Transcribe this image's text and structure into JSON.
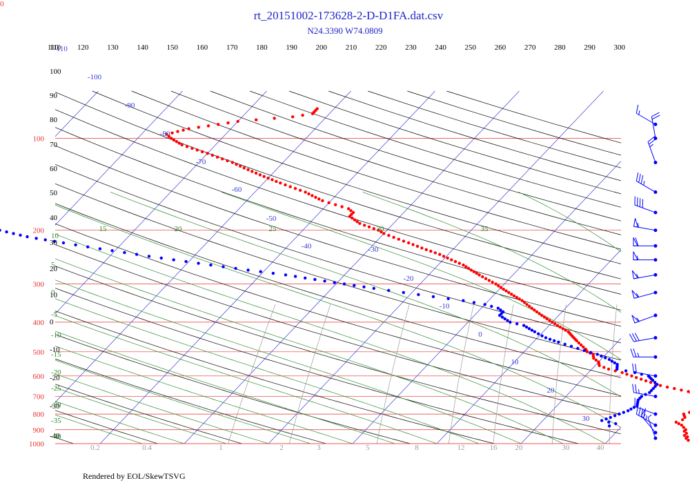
{
  "corner_label": "0",
  "footer": "Rendered by EOL/SkewTSVG",
  "chart_data": {
    "type": "skew-t",
    "title": "rt_20151002-173628-2-D-D1FA.dat.csv",
    "subtitle": "N24.3390 W74.0809",
    "grid": true,
    "colors": {
      "isobar": "#e83030",
      "isotherm": "#3b3bd6",
      "dry_adiabat": "#000000",
      "moist_adiabat": "#2e8b2e",
      "mixing_ratio": "#999999",
      "temperature": "#ff0000",
      "dewpoint": "#0000ff",
      "wind": "#0000ff"
    },
    "pressure_ticks": [
      "100",
      "200",
      "300",
      "400",
      "500",
      "600",
      "700",
      "800",
      "900",
      "1000"
    ],
    "top_ticks": [
      "110",
      "120",
      "130",
      "140",
      "150",
      "160",
      "170",
      "180",
      "190",
      "200",
      "210",
      "220",
      "230",
      "240",
      "250",
      "260",
      "270",
      "280",
      "290",
      "300"
    ],
    "left_black_ticks": [
      "110",
      "100",
      "90",
      "80",
      "70",
      "60",
      "50",
      "40",
      "30",
      "20",
      "10",
      "0",
      "-10",
      "-20",
      "-30",
      "-40"
    ],
    "isotherm_labels": [
      "-110",
      "-100",
      "-90",
      "-80",
      "-70",
      "-60",
      "-50",
      "-40",
      "-30",
      "-20",
      "-10",
      "0",
      "10",
      "20",
      "30"
    ],
    "moist_top_labels": [
      "15",
      "20",
      "25",
      "30",
      "35"
    ],
    "moist_left_labels": [
      "10",
      "5",
      "0",
      "-5",
      "-10",
      "-15",
      "-20",
      "-25",
      "-30",
      "-35",
      "-40"
    ],
    "mixing_ratio_labels": [
      "0.2",
      "0.4",
      "1",
      "2",
      "3",
      "5",
      "8",
      "12",
      "16",
      "20",
      "30",
      "40"
    ],
    "temperature_profile": [
      [
        1000,
        21
      ],
      [
        990,
        20.5
      ],
      [
        975,
        19.5
      ],
      [
        960,
        19
      ],
      [
        950,
        19
      ],
      [
        940,
        18.5
      ],
      [
        925,
        18.5
      ],
      [
        910,
        18
      ],
      [
        900,
        18
      ],
      [
        885,
        17.5
      ],
      [
        870,
        17
      ],
      [
        850,
        16
      ],
      [
        835,
        16.5
      ],
      [
        820,
        16.5
      ],
      [
        800,
        16
      ],
      [
        790,
        16.5
      ],
      [
        775,
        17
      ],
      [
        760,
        17
      ],
      [
        745,
        17.5
      ],
      [
        730,
        17
      ],
      [
        715,
        16
      ],
      [
        700,
        15.5
      ],
      [
        690,
        15
      ],
      [
        675,
        14
      ],
      [
        660,
        12
      ],
      [
        645,
        10
      ],
      [
        630,
        8.5
      ],
      [
        615,
        7
      ],
      [
        600,
        5.5
      ],
      [
        585,
        4
      ],
      [
        570,
        2
      ],
      [
        555,
        0.5
      ],
      [
        540,
        0
      ],
      [
        525,
        -1
      ],
      [
        510,
        -1.5
      ],
      [
        500,
        -2.5
      ],
      [
        490,
        -3
      ],
      [
        475,
        -4
      ],
      [
        460,
        -5
      ],
      [
        445,
        -6
      ],
      [
        430,
        -7
      ],
      [
        415,
        -8.5
      ],
      [
        400,
        -10
      ],
      [
        380,
        -12
      ],
      [
        360,
        -14
      ],
      [
        340,
        -16
      ],
      [
        320,
        -18.5
      ],
      [
        300,
        -21
      ],
      [
        280,
        -24
      ],
      [
        260,
        -27
      ],
      [
        240,
        -31
      ],
      [
        220,
        -36
      ],
      [
        205,
        -40
      ],
      [
        200,
        -41
      ],
      [
        190,
        -44
      ],
      [
        180,
        -46
      ],
      [
        175,
        -46
      ],
      [
        170,
        -47
      ],
      [
        165,
        -49
      ],
      [
        160,
        -51
      ],
      [
        150,
        -54
      ],
      [
        140,
        -58
      ],
      [
        130,
        -62
      ],
      [
        120,
        -66
      ],
      [
        112,
        -70
      ],
      [
        105,
        -74
      ],
      [
        100,
        -76
      ],
      [
        97,
        -77
      ],
      [
        95,
        -76
      ],
      [
        93,
        -75
      ],
      [
        91,
        -73
      ],
      [
        90,
        -72
      ],
      [
        88,
        -70
      ],
      [
        87,
        -68
      ],
      [
        86,
        -66
      ],
      [
        85,
        -64
      ],
      [
        84,
        -63
      ],
      [
        83,
        -62
      ],
      [
        80,
        -62
      ]
    ],
    "dewpoint_profile": [
      [
        875,
        8.5
      ],
      [
        860,
        9
      ],
      [
        850,
        8
      ],
      [
        840,
        7
      ],
      [
        810,
        8
      ],
      [
        780,
        9
      ],
      [
        750,
        9.5
      ],
      [
        720,
        9
      ],
      [
        700,
        9
      ],
      [
        680,
        9.5
      ],
      [
        660,
        9.5
      ],
      [
        640,
        9.5
      ],
      [
        620,
        8.5
      ],
      [
        600,
        7.5
      ],
      [
        585,
        5.5
      ],
      [
        570,
        3
      ],
      [
        550,
        2.5
      ],
      [
        530,
        1
      ],
      [
        510,
        -1
      ],
      [
        495,
        -3
      ],
      [
        480,
        -5
      ],
      [
        465,
        -7
      ],
      [
        450,
        -9
      ],
      [
        430,
        -11
      ],
      [
        410,
        -13
      ],
      [
        400,
        -15
      ],
      [
        390,
        -16
      ],
      [
        380,
        -17
      ],
      [
        370,
        -17
      ],
      [
        360,
        -18
      ],
      [
        350,
        -20
      ],
      [
        340,
        -23
      ],
      [
        330,
        -27
      ],
      [
        320,
        -31
      ],
      [
        310,
        -35
      ],
      [
        300,
        -39
      ],
      [
        290,
        -43
      ],
      [
        280,
        -47
      ],
      [
        270,
        -52
      ],
      [
        260,
        -57
      ],
      [
        250,
        -62
      ],
      [
        240,
        -67
      ],
      [
        230,
        -72
      ],
      [
        220,
        -77
      ],
      [
        210,
        -82
      ],
      [
        200,
        -86
      ],
      [
        195,
        -88
      ]
    ],
    "wind_barbs": [
      {
        "pressure": 90,
        "direction": 300,
        "speed": 15
      },
      {
        "pressure": 100,
        "direction": 350,
        "speed": 20
      },
      {
        "pressure": 120,
        "direction": 340,
        "speed": 25
      },
      {
        "pressure": 150,
        "direction": 300,
        "speed": 35
      },
      {
        "pressure": 175,
        "direction": 290,
        "speed": 40
      },
      {
        "pressure": 200,
        "direction": 280,
        "speed": 55
      },
      {
        "pressure": 225,
        "direction": 270,
        "speed": 60
      },
      {
        "pressure": 250,
        "direction": 270,
        "speed": 55
      },
      {
        "pressure": 280,
        "direction": 260,
        "speed": 55
      },
      {
        "pressure": 320,
        "direction": 255,
        "speed": 55
      },
      {
        "pressure": 380,
        "direction": 250,
        "speed": 55
      },
      {
        "pressure": 450,
        "direction": 260,
        "speed": 30
      },
      {
        "pressure": 520,
        "direction": 270,
        "speed": 25
      },
      {
        "pressure": 600,
        "direction": 280,
        "speed": 20
      },
      {
        "pressure": 700,
        "direction": 280,
        "speed": 25
      },
      {
        "pressure": 800,
        "direction": 290,
        "speed": 20
      },
      {
        "pressure": 870,
        "direction": 300,
        "speed": 45
      },
      {
        "pressure": 920,
        "direction": 320,
        "speed": 15
      },
      {
        "pressure": 960,
        "direction": 340,
        "speed": 5
      }
    ]
  }
}
